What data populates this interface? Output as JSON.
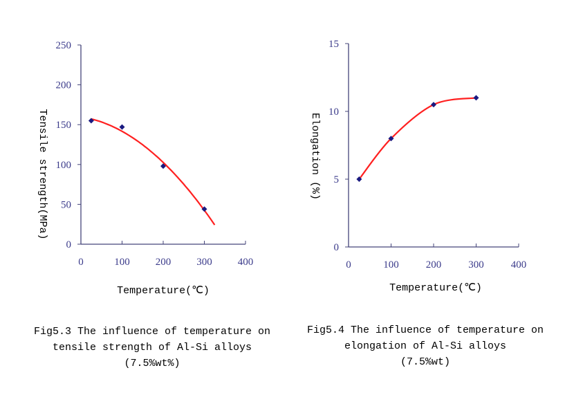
{
  "chart_data": [
    {
      "type": "scatter",
      "xlabel": "Temperature(℃)",
      "ylabel": "Tensile strength(MPa)",
      "xlim": [
        0,
        400
      ],
      "ylim": [
        0,
        250
      ],
      "xticks": [
        "0",
        "100",
        "200",
        "300",
        "400"
      ],
      "yticks": [
        "0",
        "50",
        "100",
        "150",
        "200",
        "250"
      ],
      "grid": false,
      "points": {
        "x": [
          25,
          100,
          200,
          300
        ],
        "y": [
          155,
          147,
          98,
          44
        ]
      },
      "trendline": {
        "type": "polynomial",
        "x_range": [
          25,
          325
        ]
      },
      "marker_color": "#1a1a80",
      "line_color": "#ff2020",
      "caption": [
        "Fig5.3 The influence of temperature on",
        "tensile strength of Al-Si alloys",
        "(7.5%wt%)"
      ]
    },
    {
      "type": "line",
      "xlabel": "Temperature(℃)",
      "ylabel": "Elongation (%)",
      "xlim": [
        0,
        400
      ],
      "ylim": [
        0,
        15
      ],
      "xticks": [
        "0",
        "100",
        "200",
        "300",
        "400"
      ],
      "yticks": [
        "0",
        "5",
        "10",
        "15"
      ],
      "grid": false,
      "points": {
        "x": [
          25,
          100,
          200,
          300
        ],
        "y": [
          5,
          8,
          10.5,
          11
        ]
      },
      "smooth": true,
      "marker_color": "#1a1a80",
      "line_color": "#ff2020",
      "caption": [
        "Fig5.4 The influence of temperature on",
        "elongation of Al-Si alloys",
        "(7.5%wt)"
      ]
    }
  ]
}
